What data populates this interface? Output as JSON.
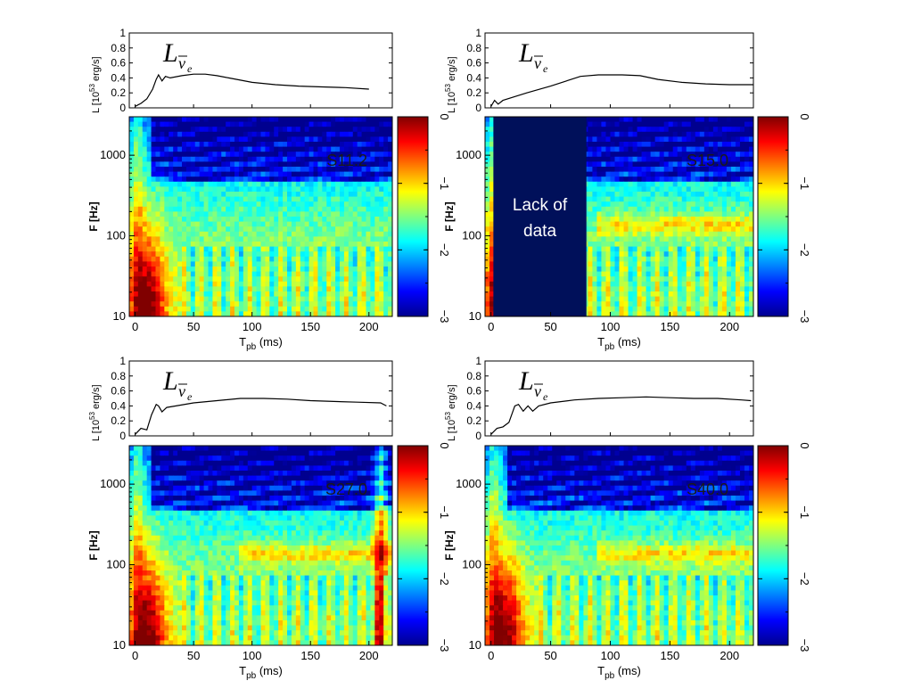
{
  "chart_data": [
    {
      "type": "line",
      "model": "S11.2",
      "line_label": {
        "symbol": "L",
        "sub": "ν",
        "subsub": "e"
      },
      "ylabel": "L [10^53 erg/s]",
      "ylim": [
        0,
        1
      ],
      "yticks": [
        "0",
        "0.2",
        "0.4",
        "0.6",
        "0.8",
        "1"
      ],
      "xlim": [
        -5,
        220
      ],
      "series": [
        {
          "x": [
            0,
            5,
            10,
            15,
            18,
            20,
            23,
            26,
            30,
            40,
            50,
            60,
            70,
            80,
            90,
            100,
            120,
            140,
            160,
            180,
            200
          ],
          "y": [
            0.02,
            0.06,
            0.12,
            0.25,
            0.38,
            0.44,
            0.36,
            0.42,
            0.4,
            0.43,
            0.45,
            0.45,
            0.43,
            0.4,
            0.37,
            0.34,
            0.31,
            0.29,
            0.28,
            0.27,
            0.25
          ]
        }
      ]
    },
    {
      "type": "heatmap",
      "model": "S11.2",
      "xlabel": "T_pb (ms)",
      "ylabel": "F [Hz]",
      "xlim": [
        -5,
        220
      ],
      "xticks": [
        "0",
        "50",
        "100",
        "150",
        "200"
      ],
      "ylim": [
        10,
        3000
      ],
      "yscale": "log",
      "yticks": [
        "10",
        "100",
        "1000"
      ],
      "colorbar": {
        "range": [
          -3,
          0
        ],
        "ticks": [
          "0",
          "−1",
          "−2",
          "−3"
        ],
        "colormap": "jet"
      },
      "annotation": "S11.2"
    },
    {
      "type": "line",
      "model": "S15.0",
      "line_label": {
        "symbol": "L",
        "sub": "ν",
        "subsub": "e"
      },
      "ylabel": "L [10^53 erg/s]",
      "ylim": [
        0,
        1
      ],
      "yticks": [
        "0",
        "0.2",
        "0.4",
        "0.6",
        "0.8",
        "1"
      ],
      "xlim": [
        -5,
        220
      ],
      "series": [
        {
          "x": [
            0,
            3,
            6,
            10,
            30,
            50,
            75,
            90,
            110,
            125,
            140,
            160,
            180,
            200,
            220
          ],
          "y": [
            0.02,
            0.1,
            0.05,
            0.1,
            0.2,
            0.29,
            0.42,
            0.44,
            0.44,
            0.43,
            0.38,
            0.34,
            0.32,
            0.31,
            0.31
          ]
        }
      ]
    },
    {
      "type": "heatmap",
      "model": "S15.0",
      "xlabel": "T_pb (ms)",
      "ylabel": "F [Hz]",
      "xlim": [
        -5,
        220
      ],
      "xticks": [
        "0",
        "50",
        "100",
        "150",
        "200"
      ],
      "ylim": [
        10,
        3000
      ],
      "yscale": "log",
      "yticks": [
        "10",
        "100",
        "1000"
      ],
      "colorbar": {
        "range": [
          -3,
          0
        ],
        "ticks": [
          "0",
          "−1",
          "−2",
          "−3"
        ],
        "colormap": "jet"
      },
      "annotation": "S15.0",
      "no_data_region": {
        "x": [
          2,
          80
        ],
        "text": [
          "Lack of",
          "data"
        ]
      }
    },
    {
      "type": "line",
      "model": "S27.0",
      "line_label": {
        "symbol": "L",
        "sub": "ν",
        "subsub": "e"
      },
      "ylabel": "L [10^53 erg/s]",
      "ylim": [
        0,
        1
      ],
      "yticks": [
        "0",
        "0.2",
        "0.4",
        "0.6",
        "0.8",
        "1"
      ],
      "xlim": [
        -5,
        220
      ],
      "series": [
        {
          "x": [
            0,
            5,
            10,
            14,
            18,
            20,
            23,
            27,
            35,
            50,
            70,
            90,
            110,
            130,
            150,
            170,
            190,
            210,
            215
          ],
          "y": [
            0.02,
            0.1,
            0.08,
            0.28,
            0.42,
            0.4,
            0.32,
            0.38,
            0.4,
            0.44,
            0.47,
            0.5,
            0.5,
            0.49,
            0.47,
            0.46,
            0.45,
            0.44,
            0.4
          ]
        }
      ]
    },
    {
      "type": "heatmap",
      "model": "S27.0",
      "xlabel": "T_pb (ms)",
      "ylabel": "F [Hz]",
      "xlim": [
        -5,
        220
      ],
      "xticks": [
        "0",
        "50",
        "100",
        "150",
        "200"
      ],
      "ylim": [
        10,
        3000
      ],
      "yscale": "log",
      "yticks": [
        "10",
        "100",
        "1000"
      ],
      "colorbar": {
        "range": [
          -3,
          0
        ],
        "ticks": [
          "0",
          "−1",
          "−2",
          "−3"
        ],
        "colormap": "jet"
      },
      "annotation": "S27.0"
    },
    {
      "type": "line",
      "model": "S40.0",
      "line_label": {
        "symbol": "L",
        "sub": "ν",
        "subsub": "e"
      },
      "ylabel": "L [10^53 erg/s]",
      "ylim": [
        0,
        1
      ],
      "yticks": [
        "0",
        "0.2",
        "0.4",
        "0.6",
        "0.8",
        "1"
      ],
      "xlim": [
        -5,
        220
      ],
      "series": [
        {
          "x": [
            0,
            5,
            10,
            15,
            20,
            23,
            27,
            31,
            35,
            40,
            50,
            70,
            90,
            110,
            130,
            150,
            170,
            190,
            210,
            218
          ],
          "y": [
            0.02,
            0.1,
            0.12,
            0.18,
            0.4,
            0.42,
            0.33,
            0.4,
            0.33,
            0.4,
            0.44,
            0.48,
            0.5,
            0.51,
            0.52,
            0.51,
            0.5,
            0.5,
            0.48,
            0.47
          ]
        }
      ]
    },
    {
      "type": "heatmap",
      "model": "S40.0",
      "xlabel": "T_pb (ms)",
      "ylabel": "F [Hz]",
      "xlim": [
        -5,
        220
      ],
      "xticks": [
        "0",
        "50",
        "100",
        "150",
        "200"
      ],
      "ylim": [
        10,
        3000
      ],
      "yscale": "log",
      "yticks": [
        "10",
        "100",
        "1000"
      ],
      "colorbar": {
        "range": [
          -3,
          0
        ],
        "ticks": [
          "0",
          "−1",
          "−2",
          "−3"
        ],
        "colormap": "jet"
      },
      "annotation": "S40.0"
    }
  ]
}
